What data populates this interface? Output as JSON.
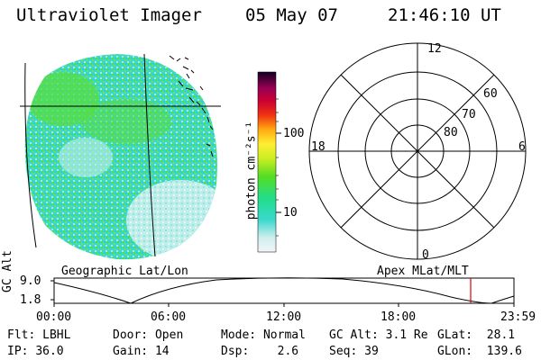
{
  "header": {
    "title": "Ultraviolet Imager",
    "date": "05 May 07",
    "time": "21:46:10 UT"
  },
  "colorbar": {
    "unit_label": "photon cm⁻²s⁻¹",
    "ticks": [
      "100",
      "10"
    ]
  },
  "polar_plot": {
    "mlt_labels": {
      "top": "12",
      "left": "18",
      "right": "6",
      "bottom": "0"
    },
    "lat_labels": [
      "60",
      "70",
      "80"
    ]
  },
  "panel_labels": {
    "left": "Geographic Lat/Lon",
    "right": "Apex MLat/MLT"
  },
  "altitude_plot": {
    "ylabel": "GC Alt",
    "yticks": [
      "9.0",
      "1.8"
    ],
    "xticks": [
      "00:00",
      "06:00",
      "12:00",
      "18:00",
      "23:59"
    ],
    "current_marker_time": "21:46"
  },
  "status": {
    "row1": [
      {
        "label": "Flt:",
        "value": "LBHL"
      },
      {
        "label": "Door:",
        "value": "Open"
      },
      {
        "label": "Mode:",
        "value": "Normal"
      },
      {
        "label": "GC Alt:",
        "value": "3.1 Re"
      },
      {
        "label": "GLat:",
        "value": "28.1"
      }
    ],
    "row2": [
      {
        "label": "IP:",
        "value": "36.0"
      },
      {
        "label": "Gain:",
        "value": "14"
      },
      {
        "label": "Dsp:",
        "value": "2.6"
      },
      {
        "label": "Seq:",
        "value": "39"
      },
      {
        "label": "GLon:",
        "value": "139.6"
      }
    ]
  },
  "colors": {
    "marker": "#dd0000",
    "imagery_cyan": "#33ddcc",
    "imagery_green": "#55dd33",
    "imagery_pale": "#cceeee"
  }
}
